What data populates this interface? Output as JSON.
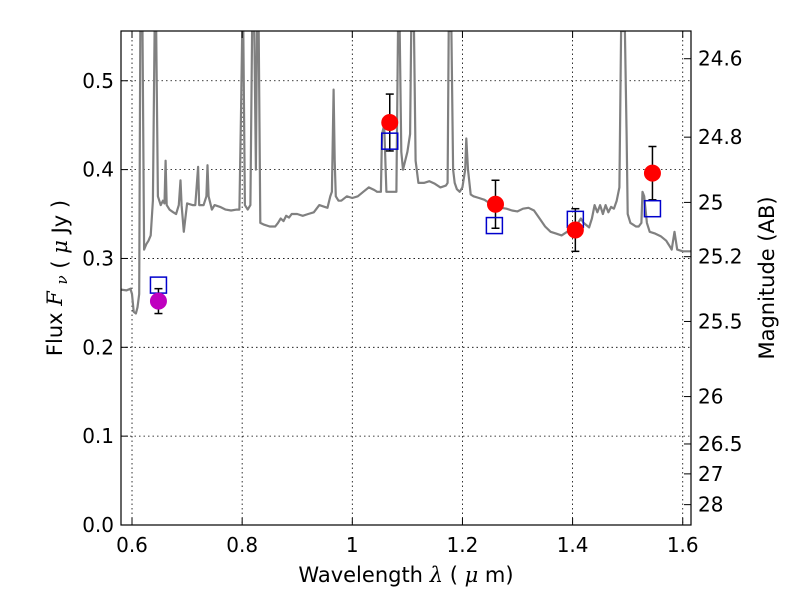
{
  "chart_data": {
    "type": "scatter",
    "title": "",
    "xlabel": {
      "text": "Wavelength",
      "symbol": "λ",
      "unit_open": "(",
      "unit_mu": "μ",
      "unit_rest": "m)"
    },
    "ylabel": {
      "text": "Flux",
      "symbol": "F",
      "subscript": "ν",
      "unit_open": "(",
      "unit_mu": "μ",
      "unit_rest": "Jy )"
    },
    "y2label": "Magnitude (AB)",
    "xlim": [
      0.58,
      1.615
    ],
    "ylim": [
      0.0,
      0.556
    ],
    "grid": true,
    "xticks": [
      {
        "value": 0.6,
        "label": "0.6"
      },
      {
        "value": 0.8,
        "label": "0.8"
      },
      {
        "value": 1.0,
        "label": "1"
      },
      {
        "value": 1.2,
        "label": "1.2"
      },
      {
        "value": 1.4,
        "label": "1.4"
      },
      {
        "value": 1.6,
        "label": "1.6"
      }
    ],
    "yticks": [
      {
        "value": 0.0,
        "label": "0.0"
      },
      {
        "value": 0.1,
        "label": "0.1"
      },
      {
        "value": 0.2,
        "label": "0.2"
      },
      {
        "value": 0.3,
        "label": "0.3"
      },
      {
        "value": 0.4,
        "label": "0.4"
      },
      {
        "value": 0.5,
        "label": "0.5"
      }
    ],
    "y2ticks": [
      {
        "mag": 24.6,
        "label": "24.6"
      },
      {
        "mag": 24.8,
        "label": "24.8"
      },
      {
        "mag": 25.0,
        "label": "25"
      },
      {
        "mag": 25.2,
        "label": "25.2"
      },
      {
        "mag": 25.5,
        "label": "25.5"
      },
      {
        "mag": 26.0,
        "label": "26"
      },
      {
        "mag": 26.5,
        "label": "26.5"
      },
      {
        "mag": 27.0,
        "label": "27"
      },
      {
        "mag": 28.0,
        "label": "28"
      }
    ],
    "colors": {
      "model": "#808080",
      "observed": "#ff0000",
      "observed_first": "#bf00bf",
      "model_box": "#0000cc",
      "errorbar": "#000000"
    },
    "model_spectrum": [
      [
        0.58,
        0.265
      ],
      [
        0.59,
        0.264
      ],
      [
        0.597,
        0.266
      ],
      [
        0.6,
        0.26
      ],
      [
        0.603,
        0.24
      ],
      [
        0.607,
        0.238
      ],
      [
        0.61,
        0.245
      ],
      [
        0.613,
        0.26
      ],
      [
        0.615,
        0.556
      ],
      [
        0.619,
        0.556
      ],
      [
        0.622,
        0.31
      ],
      [
        0.626,
        0.316
      ],
      [
        0.63,
        0.32
      ],
      [
        0.634,
        0.326
      ],
      [
        0.638,
        0.365
      ],
      [
        0.641,
        0.556
      ],
      [
        0.644,
        0.556
      ],
      [
        0.647,
        0.37
      ],
      [
        0.652,
        0.36
      ],
      [
        0.656,
        0.365
      ],
      [
        0.659,
        0.362
      ],
      [
        0.661,
        0.41
      ],
      [
        0.663,
        0.36
      ],
      [
        0.668,
        0.355
      ],
      [
        0.675,
        0.352
      ],
      [
        0.68,
        0.35
      ],
      [
        0.685,
        0.36
      ],
      [
        0.688,
        0.388
      ],
      [
        0.69,
        0.36
      ],
      [
        0.694,
        0.33
      ],
      [
        0.7,
        0.362
      ],
      [
        0.71,
        0.36
      ],
      [
        0.715,
        0.36
      ],
      [
        0.72,
        0.403
      ],
      [
        0.722,
        0.36
      ],
      [
        0.73,
        0.36
      ],
      [
        0.735,
        0.37
      ],
      [
        0.737,
        0.405
      ],
      [
        0.739,
        0.37
      ],
      [
        0.745,
        0.355
      ],
      [
        0.75,
        0.36
      ],
      [
        0.76,
        0.358
      ],
      [
        0.77,
        0.355
      ],
      [
        0.78,
        0.354
      ],
      [
        0.79,
        0.355
      ],
      [
        0.795,
        0.355
      ],
      [
        0.798,
        0.47
      ],
      [
        0.8,
        0.556
      ],
      [
        0.802,
        0.556
      ],
      [
        0.805,
        0.36
      ],
      [
        0.81,
        0.355
      ],
      [
        0.815,
        0.36
      ],
      [
        0.818,
        0.556
      ],
      [
        0.822,
        0.556
      ],
      [
        0.825,
        0.4
      ],
      [
        0.827,
        0.556
      ],
      [
        0.83,
        0.556
      ],
      [
        0.833,
        0.34
      ],
      [
        0.84,
        0.338
      ],
      [
        0.85,
        0.336
      ],
      [
        0.86,
        0.336
      ],
      [
        0.865,
        0.34
      ],
      [
        0.87,
        0.345
      ],
      [
        0.875,
        0.342
      ],
      [
        0.88,
        0.348
      ],
      [
        0.885,
        0.346
      ],
      [
        0.89,
        0.35
      ],
      [
        0.9,
        0.35
      ],
      [
        0.91,
        0.348
      ],
      [
        0.92,
        0.35
      ],
      [
        0.93,
        0.352
      ],
      [
        0.94,
        0.36
      ],
      [
        0.95,
        0.358
      ],
      [
        0.955,
        0.357
      ],
      [
        0.96,
        0.37
      ],
      [
        0.963,
        0.375
      ],
      [
        0.966,
        0.49
      ],
      [
        0.968,
        0.41
      ],
      [
        0.97,
        0.37
      ],
      [
        0.975,
        0.365
      ],
      [
        0.98,
        0.365
      ],
      [
        0.99,
        0.37
      ],
      [
        1.0,
        0.368
      ],
      [
        1.01,
        0.37
      ],
      [
        1.02,
        0.375
      ],
      [
        1.03,
        0.38
      ],
      [
        1.04,
        0.377
      ],
      [
        1.045,
        0.375
      ],
      [
        1.05,
        0.375
      ],
      [
        1.052,
        0.375
      ],
      [
        1.054,
        0.44
      ],
      [
        1.058,
        0.45
      ],
      [
        1.062,
        0.375
      ],
      [
        1.07,
        0.375
      ],
      [
        1.08,
        0.375
      ],
      [
        1.083,
        0.556
      ],
      [
        1.086,
        0.556
      ],
      [
        1.089,
        0.42
      ],
      [
        1.092,
        0.4
      ],
      [
        1.1,
        0.42
      ],
      [
        1.105,
        0.44
      ],
      [
        1.107,
        0.556
      ],
      [
        1.112,
        0.556
      ],
      [
        1.115,
        0.41
      ],
      [
        1.12,
        0.385
      ],
      [
        1.13,
        0.385
      ],
      [
        1.14,
        0.387
      ],
      [
        1.15,
        0.384
      ],
      [
        1.16,
        0.38
      ],
      [
        1.17,
        0.382
      ],
      [
        1.173,
        0.385
      ],
      [
        1.175,
        0.556
      ],
      [
        1.18,
        0.556
      ],
      [
        1.183,
        0.4
      ],
      [
        1.186,
        0.385
      ],
      [
        1.19,
        0.378
      ],
      [
        1.195,
        0.375
      ],
      [
        1.2,
        0.38
      ],
      [
        1.205,
        0.4
      ],
      [
        1.207,
        0.435
      ],
      [
        1.21,
        0.4
      ],
      [
        1.215,
        0.372
      ],
      [
        1.22,
        0.37
      ],
      [
        1.23,
        0.368
      ],
      [
        1.24,
        0.366
      ],
      [
        1.25,
        0.362
      ],
      [
        1.26,
        0.36
      ],
      [
        1.27,
        0.357
      ],
      [
        1.28,
        0.356
      ],
      [
        1.29,
        0.354
      ],
      [
        1.3,
        0.353
      ],
      [
        1.31,
        0.356
      ],
      [
        1.32,
        0.357
      ],
      [
        1.33,
        0.354
      ],
      [
        1.34,
        0.345
      ],
      [
        1.35,
        0.336
      ],
      [
        1.36,
        0.33
      ],
      [
        1.37,
        0.328
      ],
      [
        1.38,
        0.326
      ],
      [
        1.39,
        0.33
      ],
      [
        1.4,
        0.332
      ],
      [
        1.41,
        0.34
      ],
      [
        1.415,
        0.345
      ],
      [
        1.42,
        0.34
      ],
      [
        1.43,
        0.335
      ],
      [
        1.435,
        0.345
      ],
      [
        1.44,
        0.36
      ],
      [
        1.445,
        0.352
      ],
      [
        1.45,
        0.36
      ],
      [
        1.455,
        0.35
      ],
      [
        1.46,
        0.36
      ],
      [
        1.465,
        0.352
      ],
      [
        1.47,
        0.358
      ],
      [
        1.475,
        0.356
      ],
      [
        1.48,
        0.365
      ],
      [
        1.485,
        0.38
      ],
      [
        1.488,
        0.556
      ],
      [
        1.495,
        0.556
      ],
      [
        1.498,
        0.44
      ],
      [
        1.5,
        0.35
      ],
      [
        1.505,
        0.34
      ],
      [
        1.51,
        0.338
      ],
      [
        1.515,
        0.336
      ],
      [
        1.52,
        0.336
      ],
      [
        1.525,
        0.34
      ],
      [
        1.527,
        0.375
      ],
      [
        1.53,
        0.37
      ],
      [
        1.535,
        0.34
      ],
      [
        1.54,
        0.33
      ],
      [
        1.55,
        0.328
      ],
      [
        1.56,
        0.325
      ],
      [
        1.57,
        0.32
      ],
      [
        1.575,
        0.315
      ],
      [
        1.58,
        0.31
      ],
      [
        1.585,
        0.33
      ],
      [
        1.59,
        0.31
      ],
      [
        1.6,
        0.308
      ],
      [
        1.615,
        0.308
      ]
    ],
    "model_points": [
      {
        "x": 0.648,
        "y": 0.27
      },
      {
        "x": 1.068,
        "y": 0.432
      },
      {
        "x": 1.258,
        "y": 0.337
      },
      {
        "x": 1.405,
        "y": 0.344
      },
      {
        "x": 1.545,
        "y": 0.356
      }
    ],
    "observed_points": [
      {
        "x": 0.648,
        "y": 0.252,
        "yerr": 0.014
      },
      {
        "x": 1.068,
        "y": 0.453,
        "yerr": 0.032
      },
      {
        "x": 1.26,
        "y": 0.361,
        "yerr": 0.027
      },
      {
        "x": 1.405,
        "y": 0.332,
        "yerr": 0.024
      },
      {
        "x": 1.545,
        "y": 0.396,
        "yerr": 0.03
      }
    ]
  }
}
